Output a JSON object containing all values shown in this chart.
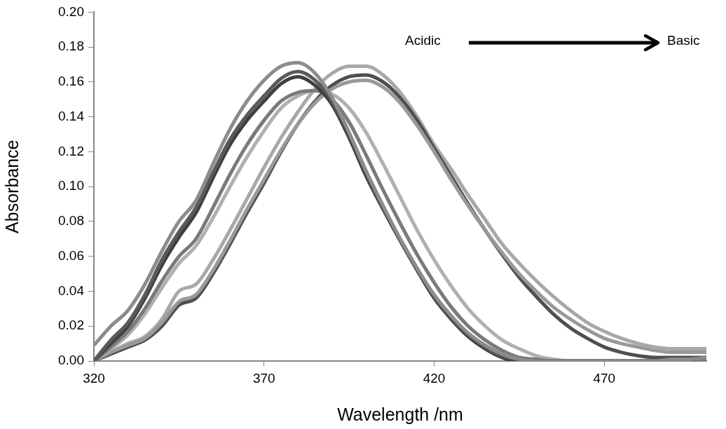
{
  "chart_data": {
    "type": "line",
    "xlabel": "Wavelength /nm",
    "ylabel": "Absorbance",
    "annotations": [
      "Acidic",
      "Basic"
    ],
    "x": [
      320,
      325,
      330,
      335,
      340,
      345,
      350,
      355,
      360,
      365,
      370,
      375,
      380,
      385,
      390,
      395,
      400,
      405,
      410,
      415,
      420,
      425,
      430,
      435,
      440,
      445,
      450,
      455,
      460,
      465,
      470,
      475,
      480,
      485,
      490,
      495,
      500
    ],
    "series": [
      {
        "color": "#8c8c8c",
        "values": [
          0.009,
          0.02,
          0.029,
          0.044,
          0.063,
          0.08,
          0.092,
          0.113,
          0.133,
          0.149,
          0.161,
          0.169,
          0.171,
          0.165,
          0.151,
          0.131,
          0.109,
          0.089,
          0.07,
          0.053,
          0.038,
          0.026,
          0.016,
          0.009,
          0.004,
          0.001,
          0,
          0,
          0,
          0,
          0,
          0,
          0,
          0,
          0.001,
          0.001,
          0.002
        ]
      },
      {
        "color": "#5a5a5a",
        "values": [
          0,
          0.012,
          0.022,
          0.038,
          0.058,
          0.074,
          0.088,
          0.108,
          0.127,
          0.141,
          0.152,
          0.162,
          0.166,
          0.161,
          0.149,
          0.13,
          0.108,
          0.088,
          0.07,
          0.053,
          0.037,
          0.025,
          0.015,
          0.008,
          0.003,
          0.001,
          0,
          0,
          0,
          0,
          0,
          0,
          0,
          0,
          0.001,
          0.001,
          0.002
        ]
      },
      {
        "color": "#404040",
        "values": [
          0,
          0.01,
          0.02,
          0.036,
          0.055,
          0.071,
          0.085,
          0.105,
          0.124,
          0.138,
          0.149,
          0.159,
          0.163,
          0.158,
          0.147,
          0.128,
          0.106,
          0.087,
          0.069,
          0.052,
          0.036,
          0.024,
          0.014,
          0.007,
          0.002,
          0,
          0,
          0,
          0,
          0,
          0,
          0,
          0,
          0,
          0.001,
          0.001,
          0.002
        ]
      },
      {
        "color": "#7a7a7a",
        "values": [
          0,
          0.008,
          0.017,
          0.03,
          0.046,
          0.06,
          0.07,
          0.088,
          0.107,
          0.124,
          0.138,
          0.149,
          0.154,
          0.155,
          0.15,
          0.137,
          0.118,
          0.098,
          0.079,
          0.061,
          0.045,
          0.031,
          0.02,
          0.012,
          0.006,
          0.002,
          0.001,
          0,
          0,
          0,
          0,
          0,
          0,
          0,
          0.001,
          0.001,
          0.001
        ]
      },
      {
        "color": "#b0b0b0",
        "values": [
          0,
          0.007,
          0.015,
          0.027,
          0.042,
          0.056,
          0.066,
          0.082,
          0.1,
          0.117,
          0.132,
          0.145,
          0.152,
          0.155,
          0.153,
          0.145,
          0.131,
          0.113,
          0.094,
          0.075,
          0.058,
          0.043,
          0.03,
          0.02,
          0.012,
          0.007,
          0.003,
          0.001,
          0,
          0,
          0,
          0,
          0,
          0,
          0,
          0,
          0
        ]
      },
      {
        "color": "#999999",
        "values": [
          0,
          0.005,
          0.009,
          0.013,
          0.022,
          0.034,
          0.038,
          0.052,
          0.069,
          0.087,
          0.104,
          0.121,
          0.136,
          0.148,
          0.156,
          0.16,
          0.161,
          0.157,
          0.148,
          0.135,
          0.12,
          0.104,
          0.089,
          0.075,
          0.062,
          0.05,
          0.04,
          0.031,
          0.024,
          0.018,
          0.013,
          0.01,
          0.008,
          0.006,
          0.005,
          0.005,
          0.005
        ]
      },
      {
        "color": "#4f4f4f",
        "values": [
          0,
          0.004,
          0.008,
          0.012,
          0.02,
          0.032,
          0.036,
          0.05,
          0.067,
          0.085,
          0.102,
          0.12,
          0.136,
          0.149,
          0.158,
          0.163,
          0.164,
          0.16,
          0.151,
          0.138,
          0.122,
          0.106,
          0.09,
          0.075,
          0.061,
          0.048,
          0.037,
          0.027,
          0.019,
          0.013,
          0.008,
          0.005,
          0.003,
          0.002,
          0.002,
          0.002,
          0.002
        ]
      },
      {
        "color": "#a8a8a8",
        "values": [
          0,
          0.005,
          0.01,
          0.014,
          0.024,
          0.04,
          0.044,
          0.058,
          0.075,
          0.093,
          0.111,
          0.128,
          0.143,
          0.156,
          0.165,
          0.169,
          0.169,
          0.164,
          0.154,
          0.14,
          0.124,
          0.11,
          0.095,
          0.081,
          0.067,
          0.056,
          0.046,
          0.037,
          0.029,
          0.022,
          0.017,
          0.013,
          0.01,
          0.008,
          0.007,
          0.007,
          0.007
        ]
      }
    ],
    "xlim": [
      320,
      500
    ],
    "xticks": [
      320,
      370,
      420,
      470
    ],
    "ylim": [
      0,
      0.2
    ],
    "yticks": [
      {
        "value": 0,
        "label": "0.00"
      },
      {
        "value": 0.02,
        "label": "0.02"
      },
      {
        "value": 0.04,
        "label": "0.04"
      },
      {
        "value": 0.06,
        "label": "0.06"
      },
      {
        "value": 0.08,
        "label": "0.08"
      },
      {
        "value": 0.1,
        "label": "0.10"
      },
      {
        "value": 0.12,
        "label": "0.12"
      },
      {
        "value": 0.14,
        "label": "0.14"
      },
      {
        "value": 0.16,
        "label": "0.16"
      },
      {
        "value": 0.18,
        "label": "0.18"
      },
      {
        "value": 0.2,
        "label": "0.20"
      }
    ],
    "legend": false,
    "grid": false,
    "marker": "none",
    "line_style": "solid"
  }
}
